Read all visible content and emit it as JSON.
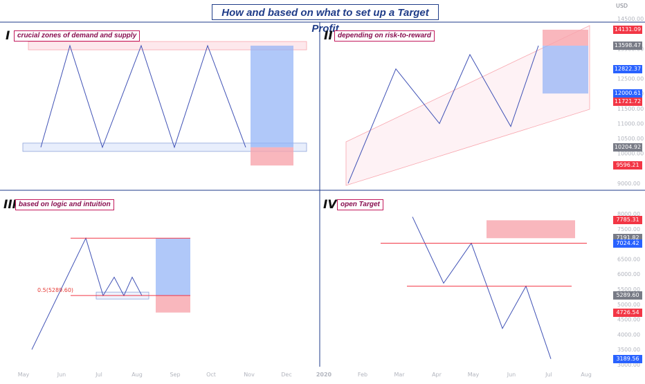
{
  "title": "How and based on what to set up a Target Profit",
  "currency_label": "USD",
  "colors": {
    "line": "#3f51b5",
    "red_zone": "#f8a5ad",
    "blue_zone": "#8fb0f7",
    "red_badge": "#f23645",
    "blue_badge": "#2962ff",
    "gray_badge": "#787b86",
    "divider": "#1e3a8a",
    "title": "#1f3c88",
    "label_border": "#c2185b"
  },
  "quadrants": [
    {
      "numeral": "I",
      "label": "crucial zones of demand and supply"
    },
    {
      "numeral": "II",
      "label": "depending on risk-to-reward"
    },
    {
      "numeral": "III",
      "label": "based on logic and intuition"
    },
    {
      "numeral": "IV",
      "label": "open Target"
    }
  ],
  "annotation_fib": "0.5(5289.60)",
  "chart_data": {
    "type": "line",
    "title": "How and based on what to set up a Target Profit",
    "x_ticks": [
      "May",
      "Jun",
      "Jul",
      "Aug",
      "Sep",
      "Oct",
      "Nov",
      "Dec",
      "2020",
      "Feb",
      "Mar",
      "Apr",
      "May",
      "Jun",
      "Jul",
      "Aug"
    ],
    "y_ticks_top": [
      14500,
      13500,
      12500,
      12000,
      11500,
      11000,
      10500,
      10000,
      9000
    ],
    "y_ticks_bottom": [
      8000,
      7500,
      7000,
      6500,
      6000,
      5500,
      5000,
      4500,
      4000,
      3500,
      3000
    ],
    "ylim_top": [
      9000,
      14500
    ],
    "ylim_bottom": [
      3000,
      8000
    ],
    "price_badges": [
      {
        "value": "14131.09",
        "color": "red"
      },
      {
        "value": "13598.47",
        "color": "gray"
      },
      {
        "value": "12822.37",
        "color": "blue"
      },
      {
        "value": "12000.61",
        "color": "blue"
      },
      {
        "value": "11721.72",
        "color": "red"
      },
      {
        "value": "10204.92",
        "color": "gray"
      },
      {
        "value": "9596.21",
        "color": "red"
      },
      {
        "value": "7785.31",
        "color": "red"
      },
      {
        "value": "7191.82",
        "color": "gray"
      },
      {
        "value": "7024.42",
        "color": "blue"
      },
      {
        "value": "5289.60",
        "color": "gray"
      },
      {
        "value": "4726.54",
        "color": "red"
      },
      {
        "value": "3189.56",
        "color": "blue"
      }
    ],
    "panels": [
      {
        "id": "I",
        "path_y": [
          10204.92,
          13598.47,
          10204.92,
          13598.47,
          10204.92,
          13598.47,
          10204.92
        ],
        "target": 13598.47,
        "entry": 10204.92,
        "stop": 9596.21
      },
      {
        "id": "II",
        "path_y": [
          9000,
          12822.37,
          11000,
          13300,
          10900,
          13598.47
        ],
        "target": 12000.61,
        "entry": 13598.47,
        "stop": 14131.09
      },
      {
        "id": "III",
        "path_y": [
          3500,
          7191.82,
          5289.6,
          5900,
          5289.6,
          5900,
          5289.6
        ],
        "target": 7191.82,
        "entry": 5289.6,
        "stop": 4726.54
      },
      {
        "id": "IV",
        "path_y": [
          7900,
          5700,
          7024.42,
          4200,
          5600,
          3189.56
        ],
        "target": 7785.31,
        "entry": 7191.82,
        "support": 5600
      }
    ]
  }
}
